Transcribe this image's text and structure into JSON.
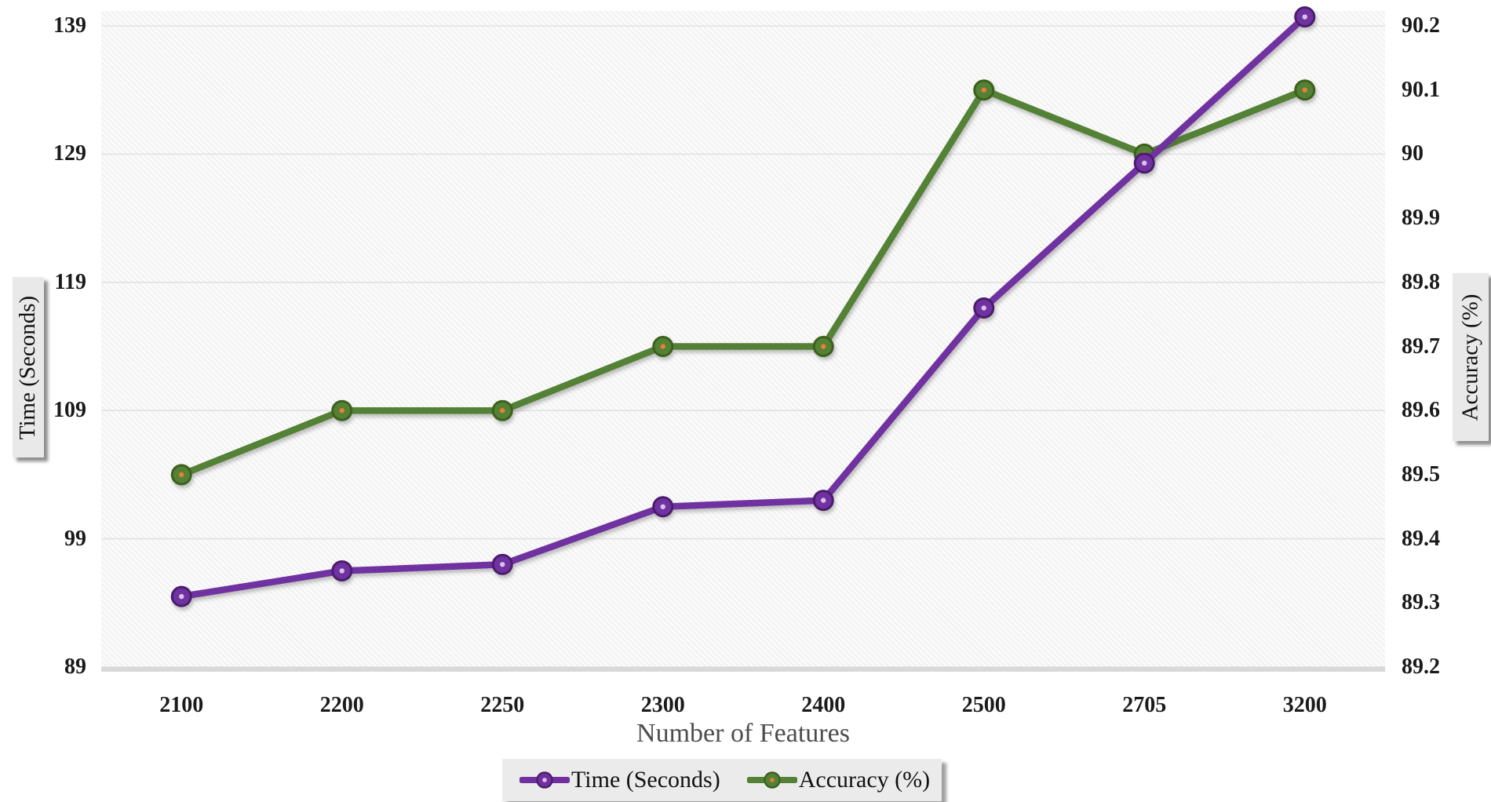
{
  "figure": {
    "x_axis_title": "Number of Features"
  },
  "left_axis": {
    "title": "Time (Seconds)",
    "tick_labels": [
      "139",
      "129",
      "119",
      "109",
      "99",
      "89"
    ]
  },
  "right_axis": {
    "title": "Accuracy (%)",
    "tick_labels": [
      "90.2",
      "90.1",
      "90",
      "89.9",
      "89.8",
      "89.7",
      "89.6",
      "89.5",
      "89.4",
      "89.3",
      "89.2"
    ]
  },
  "colors": {
    "time_series_purple": "#7030A0",
    "time_marker_ring": "#4C1F6E",
    "time_marker_dot": "#D9C2EA",
    "accuracy_series_green": "#538135",
    "accuracy_marker_ring": "#3E611F",
    "accuracy_marker_dot": "#ED7D31",
    "gridline": "#e2e2e2",
    "axis_band": "#d9d9d9",
    "hatch_line": "#e4e4e4",
    "plot_background": "#fafafa"
  },
  "chart_data": {
    "type": "line",
    "title": "",
    "xlabel": "Number of Features",
    "ylabel_left": "Time (Seconds)",
    "ylabel_right": "Accuracy (%)",
    "categories": [
      "2100",
      "2200",
      "2250",
      "2300",
      "2400",
      "2500",
      "2705",
      "3200"
    ],
    "series": [
      {
        "name": "Time (Seconds)",
        "axis": "left",
        "color": "#7030A0",
        "marker_ring": "#4C1F6E",
        "marker_dot": "#D9C2EA",
        "values": [
          94.5,
          96.5,
          97,
          101.5,
          102,
          117,
          128.3,
          139.7
        ]
      },
      {
        "name": "Accuracy (%)",
        "axis": "right",
        "color": "#538135",
        "marker_ring": "#3E611F",
        "marker_dot": "#ED7D31",
        "values": [
          89.5,
          89.6,
          89.6,
          89.7,
          89.7,
          90.1,
          90.0,
          90.1
        ]
      }
    ],
    "left_axis_ticks": [
      139,
      129,
      119,
      109,
      99,
      89
    ],
    "right_axis_ticks": [
      90.2,
      90.1,
      90.0,
      89.9,
      89.8,
      89.7,
      89.6,
      89.5,
      89.4,
      89.3,
      89.2
    ],
    "left_ylim": [
      89,
      140.2
    ],
    "right_ylim": [
      89.2,
      90.22
    ],
    "grid": "horizontal",
    "legend_position": "bottom-center",
    "plot_background": "diagonal-hatch"
  }
}
